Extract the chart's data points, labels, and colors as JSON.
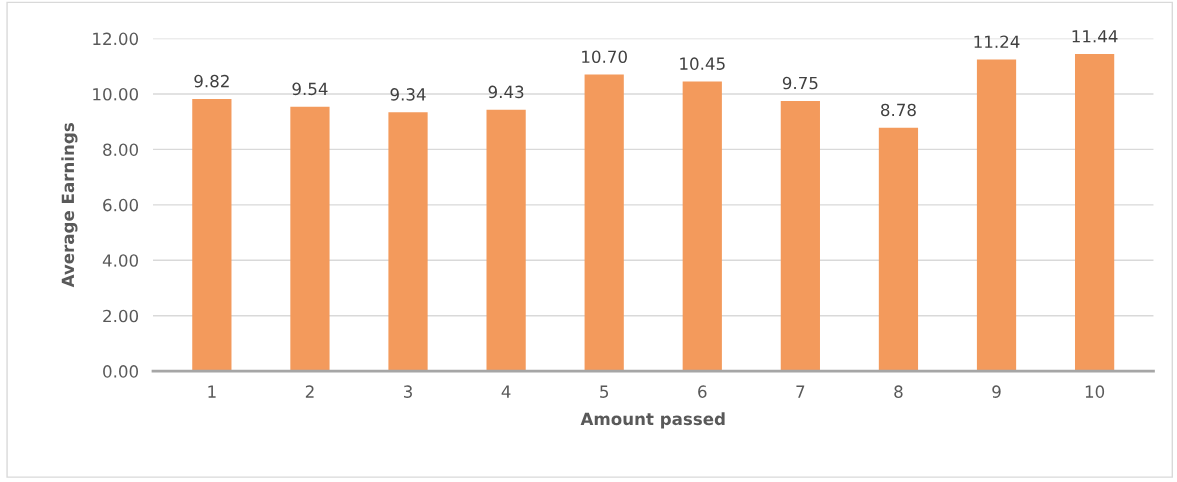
{
  "chart_data": {
    "type": "bar",
    "xlabel": "Amount passed",
    "ylabel": "Average Earnings",
    "categories": [
      "1",
      "2",
      "3",
      "4",
      "5",
      "6",
      "7",
      "8",
      "9",
      "10"
    ],
    "values": [
      9.82,
      9.54,
      9.34,
      9.43,
      10.7,
      10.45,
      9.75,
      8.78,
      11.24,
      11.44
    ],
    "value_labels": [
      "9.82",
      "9.54",
      "9.34",
      "9.43",
      "10.70",
      "10.45",
      "9.75",
      "8.78",
      "11.24",
      "11.44"
    ],
    "color": "#f39a5c",
    "ylim": [
      0,
      12
    ],
    "yticks": [
      {
        "value": 0,
        "label": "0.00"
      },
      {
        "value": 2,
        "label": "2.00"
      },
      {
        "value": 4,
        "label": "4.00"
      },
      {
        "value": 6,
        "label": "6.00"
      },
      {
        "value": 8,
        "label": "8.00"
      },
      {
        "value": 10,
        "label": "10.00"
      },
      {
        "value": 12,
        "label": "12.00"
      }
    ],
    "grid": "y",
    "legend": false
  }
}
